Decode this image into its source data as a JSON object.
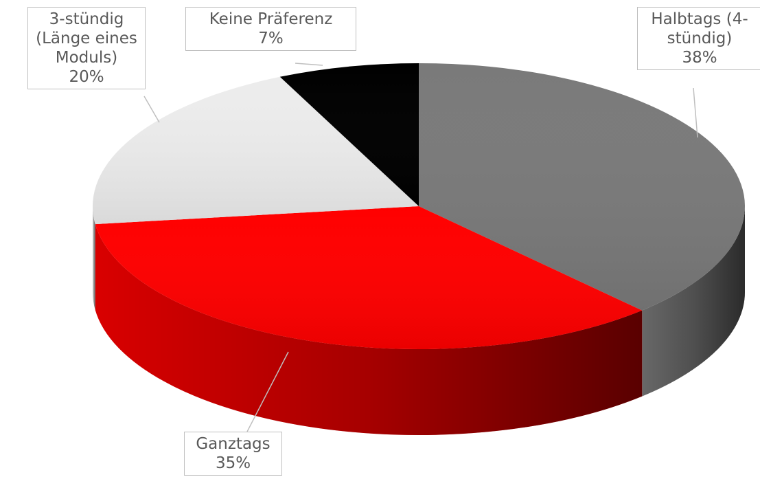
{
  "chart_data": {
    "type": "pie",
    "categories": [
      "Halbtags (4-stündig)",
      "Ganztags",
      "3-stündig (Länge eines Moduls)",
      "Keine Präferenz"
    ],
    "values": [
      38,
      35,
      20,
      7
    ],
    "value_labels": [
      "38%",
      "35%",
      "20%",
      "7%"
    ],
    "colors": [
      "#7a7a7a",
      "#ff0000",
      "#ececec",
      "#000000"
    ]
  }
}
